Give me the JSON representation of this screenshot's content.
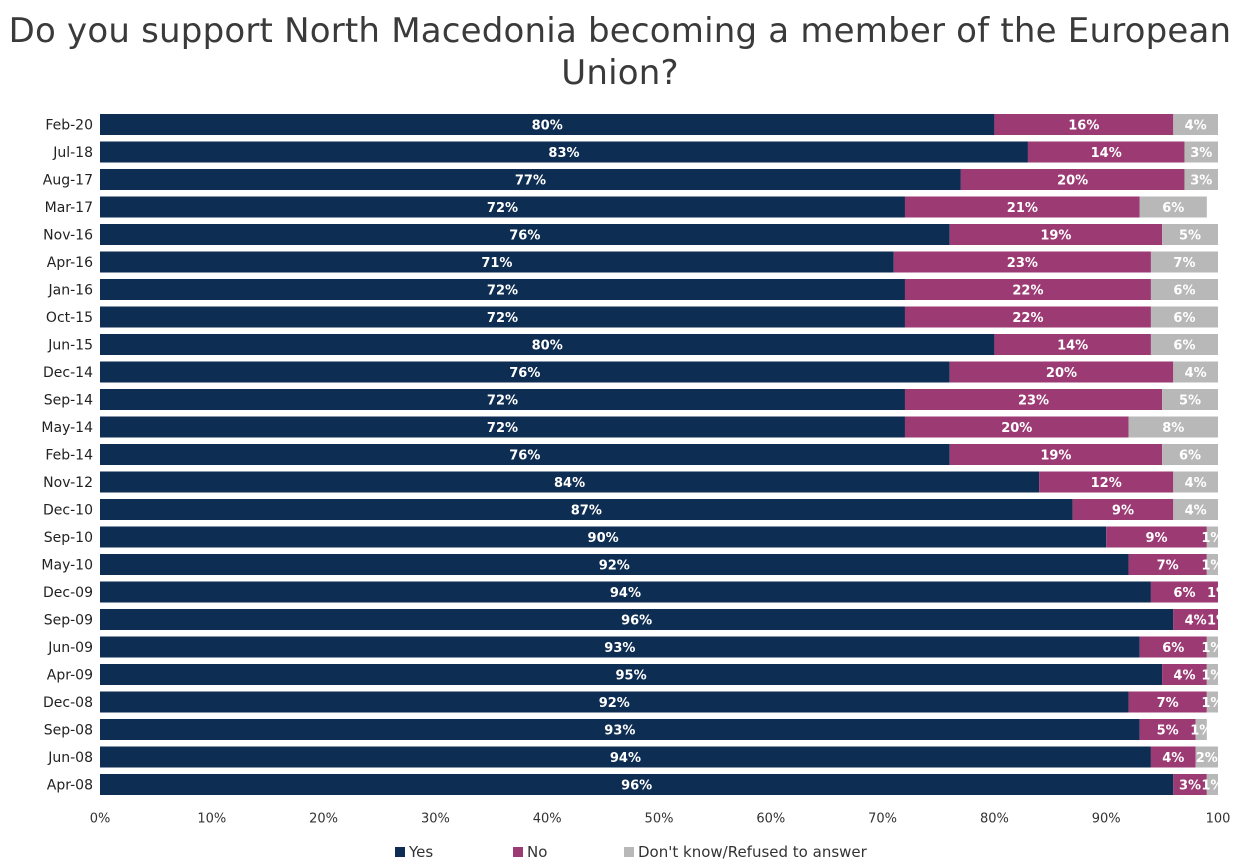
{
  "chart_data": {
    "type": "bar",
    "orientation": "horizontal",
    "stacked": true,
    "title": "Do you support North Macedonia becoming a member of the European Union?",
    "categories": [
      "Feb-20",
      "Jul-18",
      "Aug-17",
      "Mar-17",
      "Nov-16",
      "Apr-16",
      "Jan-16",
      "Oct-15",
      "Jun-15",
      "Dec-14",
      "Sep-14",
      "May-14",
      "Feb-14",
      "Nov-12",
      "Dec-10",
      "Sep-10",
      "May-10",
      "Dec-09",
      "Sep-09",
      "Jun-09",
      "Apr-09",
      "Dec-08",
      "Sep-08",
      "Jun-08",
      "Apr-08"
    ],
    "series": [
      {
        "name": "Yes",
        "color": "#0e2d52",
        "values": [
          80,
          83,
          77,
          72,
          76,
          71,
          72,
          72,
          80,
          76,
          72,
          72,
          76,
          84,
          87,
          90,
          92,
          94,
          96,
          93,
          95,
          92,
          93,
          94,
          96
        ],
        "labels": [
          "80%",
          "83%",
          "77%",
          "72%",
          "76%",
          "71%",
          "72%",
          "72%",
          "80%",
          "76%",
          "72%",
          "72%",
          "76%",
          "84%",
          "87%",
          "90%",
          "92%",
          "94%",
          "96%",
          "93%",
          "95%",
          "92%",
          "93%",
          "94%",
          "96%"
        ]
      },
      {
        "name": "No",
        "color": "#9c3a73",
        "values": [
          16,
          14,
          20,
          21,
          19,
          23,
          22,
          22,
          14,
          20,
          23,
          20,
          19,
          12,
          9,
          9,
          7,
          6,
          4,
          6,
          4,
          7,
          5,
          4,
          3
        ],
        "labels": [
          "16%",
          "14%",
          "20%",
          "21%",
          "19%",
          "23%",
          "22%",
          "22%",
          "14%",
          "20%",
          "23%",
          "20%",
          "19%",
          "12%",
          "9%",
          "9%",
          "7%",
          "6%",
          "4%",
          "6%",
          "4%",
          "7%",
          "5%",
          "4%",
          "3%"
        ]
      },
      {
        "name": "Don't know/Refused to answer",
        "color": "#b8b8b8",
        "values": [
          4,
          3,
          3,
          6,
          5,
          7,
          6,
          6,
          6,
          4,
          5,
          8,
          6,
          4,
          4,
          1,
          1,
          1,
          1,
          1,
          1,
          1,
          1,
          2,
          1
        ],
        "labels": [
          "4%",
          "3%",
          "3%",
          "6%",
          "5%",
          "7%",
          "6%",
          "6%",
          "6%",
          "4%",
          "5%",
          "8%",
          "6%",
          "4%",
          "4%",
          "1%",
          "1%",
          "1%",
          "1%",
          "1%",
          "1%",
          "1%",
          "1%",
          "2%",
          "1%"
        ]
      }
    ],
    "x_ticks": [
      "0%",
      "10%",
      "20%",
      "30%",
      "40%",
      "50%",
      "60%",
      "70%",
      "80%",
      "90%",
      "100"
    ],
    "xlim": [
      0,
      100
    ],
    "legend_position": "bottom",
    "grid": false
  }
}
